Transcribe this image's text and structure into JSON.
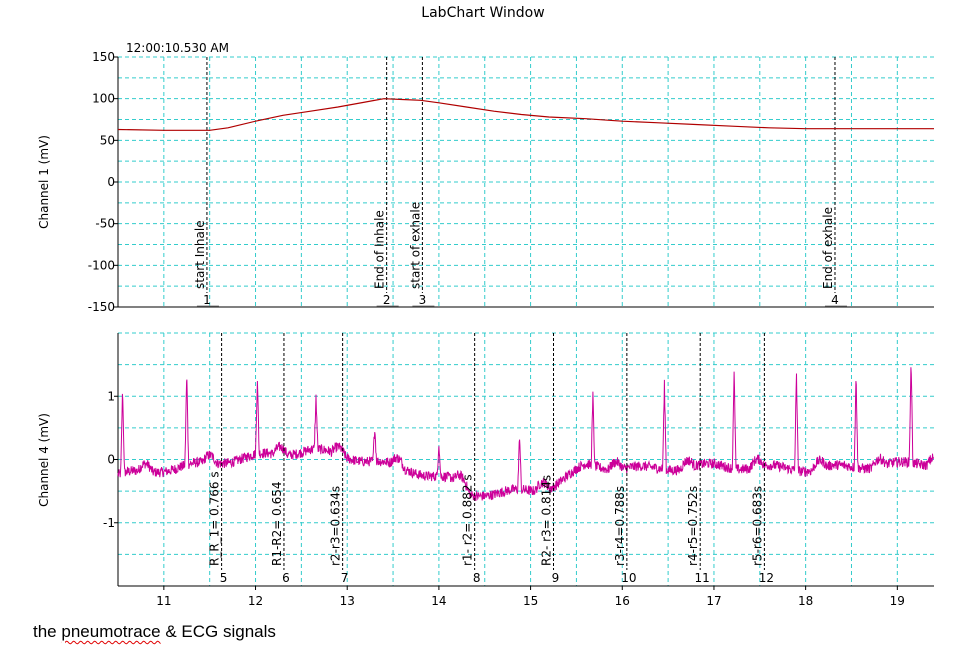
{
  "window_title": "LabChart Window",
  "timestamp": "12:00:10.530 AM",
  "caption": {
    "word1": "the",
    "word2": "pneumotrace",
    "rest": "& ECG signals"
  },
  "colors": {
    "channel1": "#b00000",
    "channel4": "#cc0099",
    "grid": "#33cccc"
  },
  "chart_data": [
    {
      "type": "line",
      "name": "channel-1",
      "ylabel": "Channel 1 (mV)",
      "xlim": [
        10.5,
        19.4
      ],
      "ylim": [
        -150,
        150
      ],
      "yticks": [
        150,
        100,
        50,
        0,
        -50,
        -100,
        -150
      ],
      "grid": true,
      "series": [
        {
          "x": [
            10.5,
            11.0,
            11.3,
            11.5,
            11.7,
            12.0,
            12.3,
            12.6,
            12.9,
            13.2,
            13.4,
            13.6,
            13.8,
            14.0,
            14.3,
            14.6,
            14.9,
            15.2,
            15.6,
            16.0,
            16.4,
            16.8,
            17.2,
            17.6,
            18.0,
            18.4,
            18.8,
            19.4
          ],
          "y": [
            63,
            62,
            62,
            62,
            65,
            73,
            80,
            85,
            90,
            96,
            100,
            99,
            98,
            95,
            90,
            85,
            81,
            78,
            76,
            73,
            71,
            69,
            67,
            65,
            64,
            64,
            64,
            64
          ]
        }
      ],
      "markers": [
        {
          "x": 11.47,
          "label": "start Inhale",
          "num": "1"
        },
        {
          "x": 13.43,
          "label": "End of Inhale",
          "num": "2"
        },
        {
          "x": 13.82,
          "label": "start of exhale",
          "num": "3"
        },
        {
          "x": 18.32,
          "label": "End of exhale",
          "num": "4"
        }
      ]
    },
    {
      "type": "line",
      "name": "channel-4",
      "ylabel": "Channel 4 (mV)",
      "xlim": [
        10.5,
        19.4
      ],
      "ylim": [
        -2,
        2
      ],
      "yticks": [
        1,
        0,
        -1
      ],
      "xticks": [
        11,
        12,
        13,
        14,
        15,
        16,
        17,
        18,
        19
      ],
      "grid": true,
      "beats": [
        {
          "x": 10.55,
          "peak": 1.1
        },
        {
          "x": 11.25,
          "peak": 1.35
        },
        {
          "x": 12.02,
          "peak": 1.25
        },
        {
          "x": 12.66,
          "peak": 0.95
        },
        {
          "x": 13.3,
          "peak": 0.5
        },
        {
          "x": 14.0,
          "peak": 0.25
        },
        {
          "x": 14.88,
          "peak": 0.35
        },
        {
          "x": 15.68,
          "peak": 1.0
        },
        {
          "x": 16.46,
          "peak": 1.2
        },
        {
          "x": 17.22,
          "peak": 1.4
        },
        {
          "x": 17.9,
          "peak": 1.4
        },
        {
          "x": 18.55,
          "peak": 1.35
        },
        {
          "x": 19.15,
          "peak": 1.55
        }
      ],
      "baseline": [
        {
          "x": 10.5,
          "y": -0.25
        },
        {
          "x": 11.3,
          "y": -0.1
        },
        {
          "x": 12.0,
          "y": 0.05
        },
        {
          "x": 12.6,
          "y": 0.15
        },
        {
          "x": 13.0,
          "y": 0.05
        },
        {
          "x": 13.5,
          "y": -0.1
        },
        {
          "x": 14.2,
          "y": -0.35
        },
        {
          "x": 14.35,
          "y": -0.55
        },
        {
          "x": 15.0,
          "y": -0.5
        },
        {
          "x": 15.25,
          "y": -0.4
        },
        {
          "x": 15.6,
          "y": -0.1
        },
        {
          "x": 16.3,
          "y": -0.15
        },
        {
          "x": 17.0,
          "y": -0.1
        },
        {
          "x": 18.0,
          "y": -0.15
        },
        {
          "x": 19.4,
          "y": -0.05
        }
      ],
      "markers": [
        {
          "x": 11.63,
          "label": "R_R_1= 0.766 s",
          "num": "5"
        },
        {
          "x": 12.31,
          "label": "R1-R2= 0.654",
          "num": "6"
        },
        {
          "x": 12.95,
          "label": "r2-r3=0.634s",
          "num": "7"
        },
        {
          "x": 14.39,
          "label": "r1- r2= 0.882 s",
          "num": "8"
        },
        {
          "x": 15.25,
          "label": "R2- r3= 0.814s",
          "num": "9"
        },
        {
          "x": 16.05,
          "label": "r3-r4=0.788s",
          "num": "10"
        },
        {
          "x": 16.85,
          "label": "r4-r5=0.752s",
          "num": "11"
        },
        {
          "x": 17.55,
          "label": "r5-r6=0.683s",
          "num": "12"
        }
      ]
    }
  ]
}
